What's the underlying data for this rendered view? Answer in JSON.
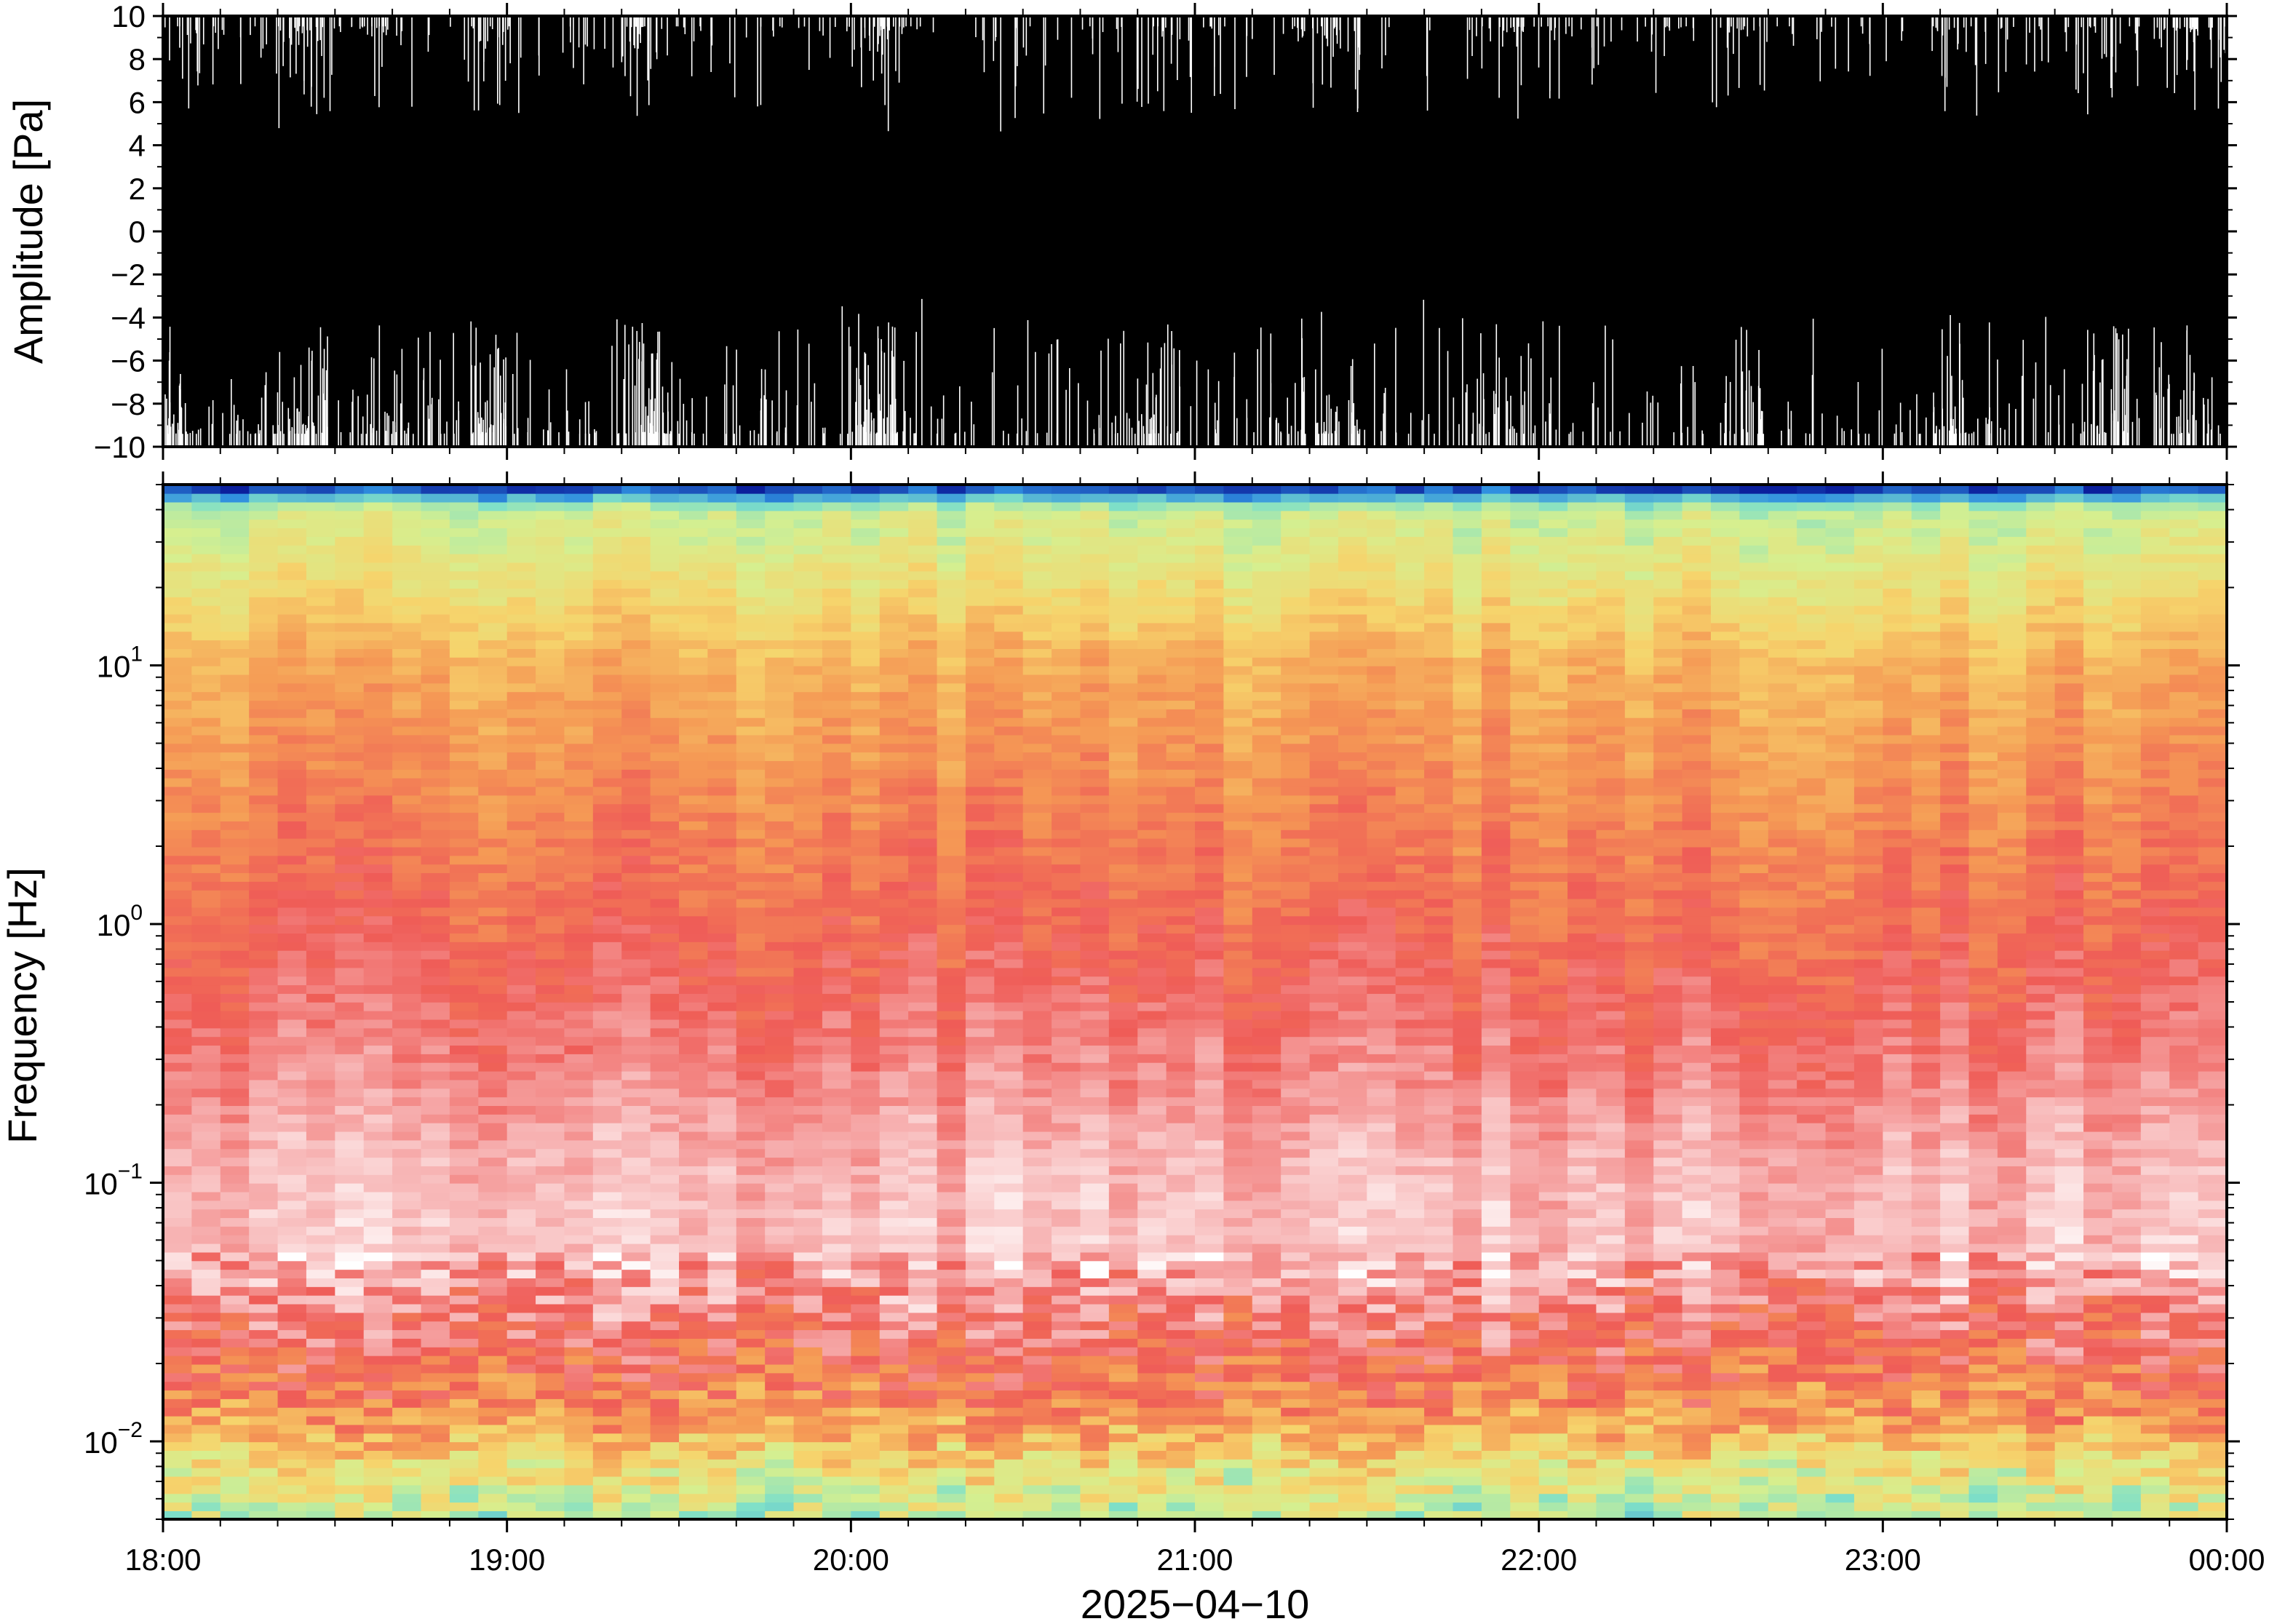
{
  "chart_data": [
    {
      "type": "line",
      "panel": "waveform",
      "ylabel": "Amplitude [Pa]",
      "xlabel": "",
      "ylim": [
        -10,
        10
      ],
      "yticks": [
        10,
        8,
        6,
        4,
        2,
        0,
        -2,
        -4,
        -6,
        -8,
        -10
      ],
      "ytick_labels": [
        "10",
        "8",
        "6",
        "4",
        "2",
        "0",
        "−2",
        "−4",
        "−6",
        "−8",
        "−10"
      ],
      "xlim_hours": [
        18,
        24
      ],
      "fill_color": "#000000",
      "spike_color": "#ffffff",
      "description_of_signal": "",
      "series": [
        {
          "values_range": [
            -10,
            10
          ]
        }
      ]
    },
    {
      "type": "heatmap",
      "panel": "spectrogram",
      "ylabel": "Frequency [Hz]",
      "xlabel": "2025−04−10",
      "y_scale": "log",
      "ylim": [
        0.005,
        50
      ],
      "yticks": [
        0.01,
        0.1,
        1,
        10
      ],
      "ytick_labels": [
        {
          "base": "10",
          "exp": "−2"
        },
        {
          "base": "10",
          "exp": "−1"
        },
        {
          "base": "10",
          "exp": "0"
        },
        {
          "base": "10",
          "exp": "1"
        }
      ],
      "x_tick_labels": [
        "18:00",
        "19:00",
        "20:00",
        "21:00",
        "22:00",
        "23:00",
        "00:00"
      ],
      "x_tick_hours": [
        18,
        19,
        20,
        21,
        22,
        23,
        24
      ],
      "colormap": [
        "#0b1f9c",
        "#2f8fe0",
        "#7fe0c8",
        "#d6ef8f",
        "#f6d46c",
        "#f59a55",
        "#ef5c57",
        "#f7b3b3",
        "#ffffff"
      ],
      "frequency_profile_hz": [
        0.005,
        0.008,
        0.012,
        0.02,
        0.035,
        0.06,
        0.12,
        0.3,
        1,
        3,
        10,
        20,
        40,
        48
      ],
      "frequency_profile_level": [
        0.35,
        0.45,
        0.62,
        0.72,
        0.82,
        0.9,
        0.88,
        0.8,
        0.72,
        0.66,
        0.58,
        0.46,
        0.36,
        0.05
      ]
    }
  ]
}
